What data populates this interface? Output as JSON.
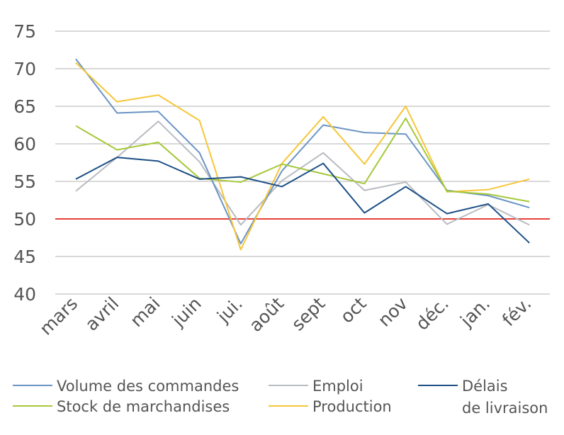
{
  "chart_data": {
    "type": "line",
    "categories": [
      "mars",
      "avril",
      "mai",
      "juin",
      "jui.",
      "août",
      "sept",
      "oct",
      "nov",
      "déc.",
      "jan.",
      "fév."
    ],
    "ylim": [
      40,
      75
    ],
    "yticks": [
      40,
      45,
      50,
      55,
      60,
      65,
      70,
      75
    ],
    "grid": true,
    "legend_position": "bottom",
    "threshold": {
      "value": 50,
      "color": "#e8403a"
    },
    "series": [
      {
        "name": "Volume des commandes",
        "color": "#6b94c4",
        "values": [
          71.3,
          64.1,
          64.3,
          58.8,
          46.7,
          56.4,
          62.5,
          61.5,
          61.3,
          53.8,
          53.1,
          51.5
        ]
      },
      {
        "name": "Emploi",
        "color": "#b8bbc1",
        "values": [
          53.7,
          58.2,
          63.0,
          57.6,
          49.2,
          55.1,
          58.8,
          53.8,
          54.9,
          49.3,
          51.9,
          49.2
        ]
      },
      {
        "name": "Délais de livraison",
        "color": "#1c4f86",
        "values": [
          55.3,
          58.2,
          57.7,
          55.3,
          55.6,
          54.3,
          57.4,
          50.8,
          54.3,
          50.7,
          52.0,
          46.8
        ]
      },
      {
        "name": "Stock de marchandises",
        "color": "#a6c83a",
        "values": [
          62.4,
          59.2,
          60.2,
          55.4,
          54.9,
          57.3,
          56.0,
          54.7,
          63.4,
          53.7,
          53.3,
          52.3
        ]
      },
      {
        "name": "Production",
        "color": "#f6c63b",
        "values": [
          70.8,
          65.6,
          66.5,
          63.1,
          45.9,
          57.4,
          63.6,
          57.3,
          65.0,
          53.6,
          53.9,
          55.3
        ]
      }
    ],
    "legend_labels": {
      "volume": "Volume des commandes",
      "emploi": "Emploi",
      "delais_line1": "Délais",
      "delais_line2": "de livraison",
      "stock": "Stock de marchandises",
      "production": "Production"
    }
  }
}
